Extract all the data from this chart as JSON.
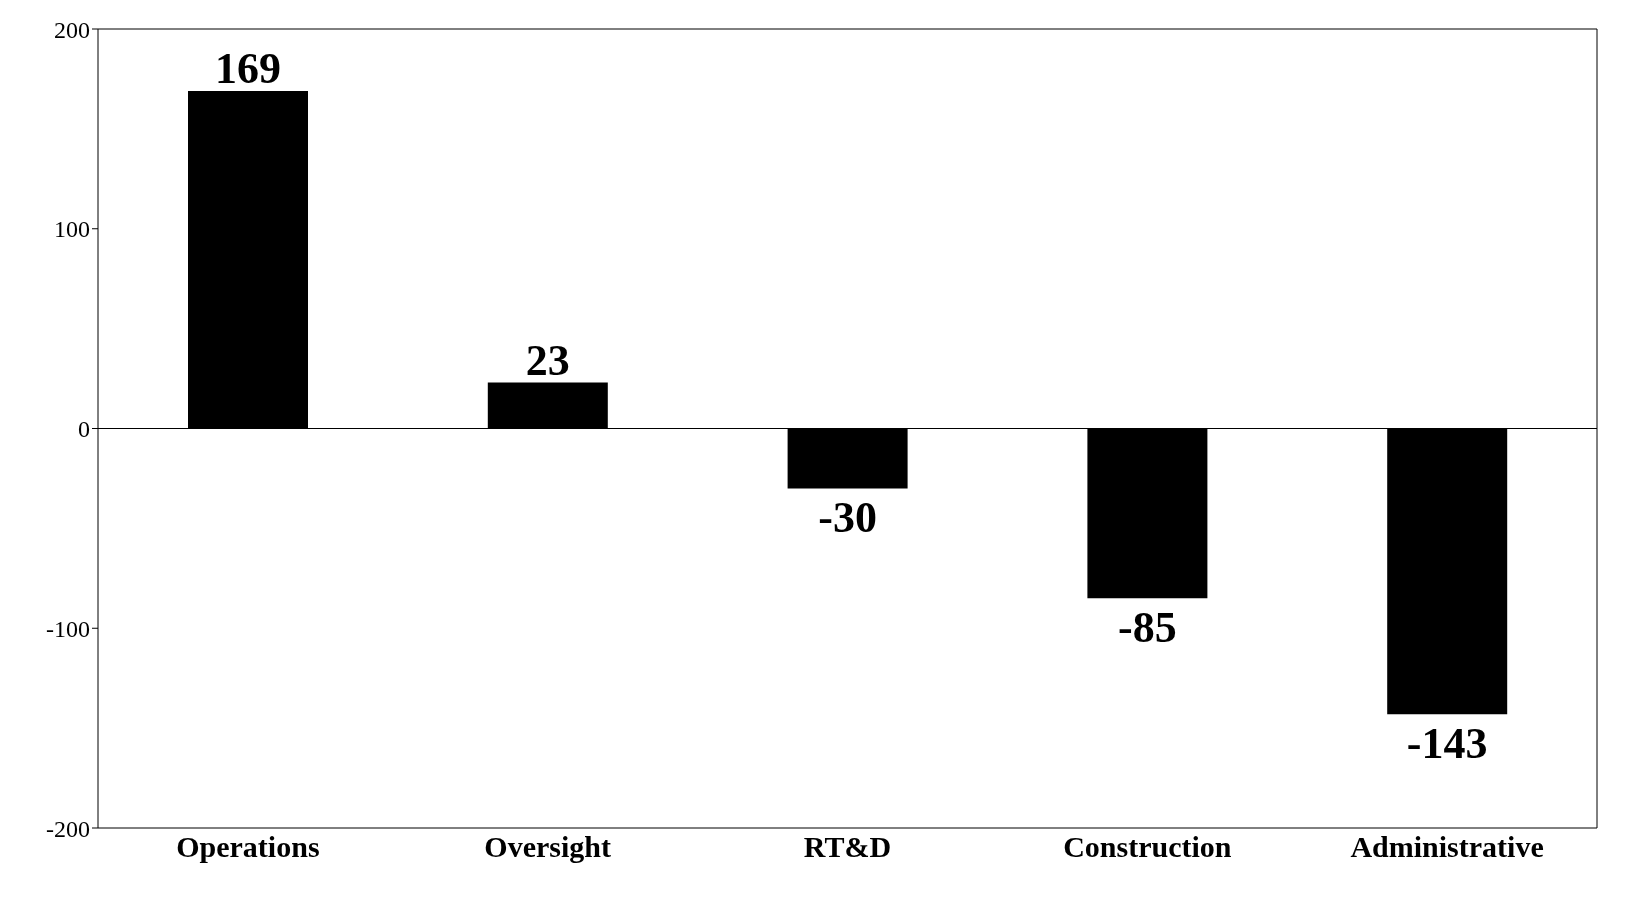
{
  "chart_data": {
    "type": "bar",
    "categories": [
      "Operations",
      "Oversight",
      "RT&D",
      "Construction",
      "Administrative"
    ],
    "values": [
      169,
      23,
      -30,
      -85,
      -143
    ],
    "color": "#000000",
    "ylim": [
      -200,
      200
    ],
    "yticks": [
      -200,
      -100,
      0,
      100,
      200
    ],
    "data_labels": true
  }
}
